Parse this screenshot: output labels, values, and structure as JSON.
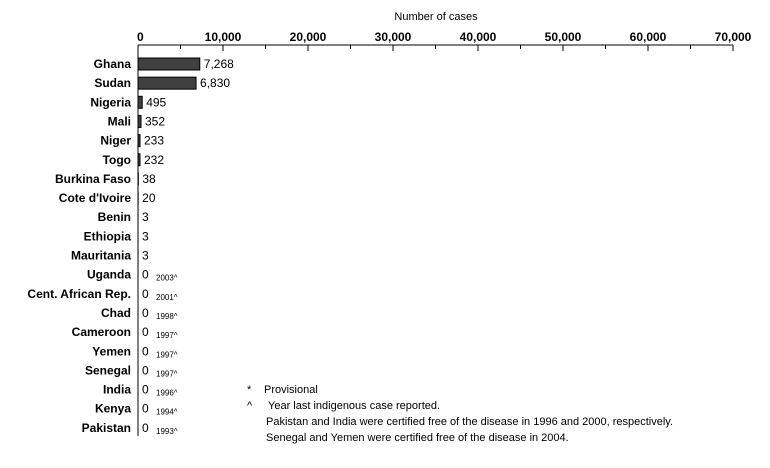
{
  "chart_data": {
    "type": "bar",
    "orientation": "horizontal",
    "xlabel": "Number of cases",
    "xlim": [
      0,
      70000
    ],
    "x_ticks": [
      "0",
      "10,000",
      "20,000",
      "30,000",
      "40,000",
      "50,000",
      "60,000",
      "70,000"
    ],
    "categories": [
      "Ghana",
      "Sudan",
      "Nigeria",
      "Mali",
      "Niger",
      "Togo",
      "Burkina Faso",
      "Cote d'Ivoire",
      "Benin",
      "Ethiopia",
      "Mauritania",
      "Uganda",
      "Cent. African Rep.",
      "Chad",
      "Cameroon",
      "Yemen",
      "Senegal",
      "India",
      "Kenya",
      "Pakistan"
    ],
    "values": [
      7268,
      6830,
      495,
      352,
      233,
      232,
      38,
      20,
      3,
      3,
      3,
      0,
      0,
      0,
      0,
      0,
      0,
      0,
      0,
      0
    ],
    "value_labels": [
      "7,268",
      "6,830",
      "495",
      "352",
      "233",
      "232",
      "38",
      "20",
      "3",
      "3",
      "3",
      "0",
      "0",
      "0",
      "0",
      "0",
      "0",
      "0",
      "0",
      "0"
    ],
    "last_case_year_labels": [
      "",
      "",
      "",
      "",
      "",
      "",
      "",
      "",
      "",
      "",
      "",
      "2003^",
      "2001^",
      "1998^",
      "1997^",
      "1997^",
      "1997^",
      "1996^",
      "1994^",
      "1993^"
    ],
    "bar_color": "#404040",
    "grid": false,
    "notes": {
      "star_symbol": "*",
      "star_text": "Provisional",
      "caret_symbol": "^",
      "caret_text": "Year last indigenous case reported.",
      "line3": "Pakistan and India were certified free of the disease in 1996 and 2000, respectively.",
      "line4": "Senegal and Yemen were certified free of the disease in 2004."
    }
  }
}
